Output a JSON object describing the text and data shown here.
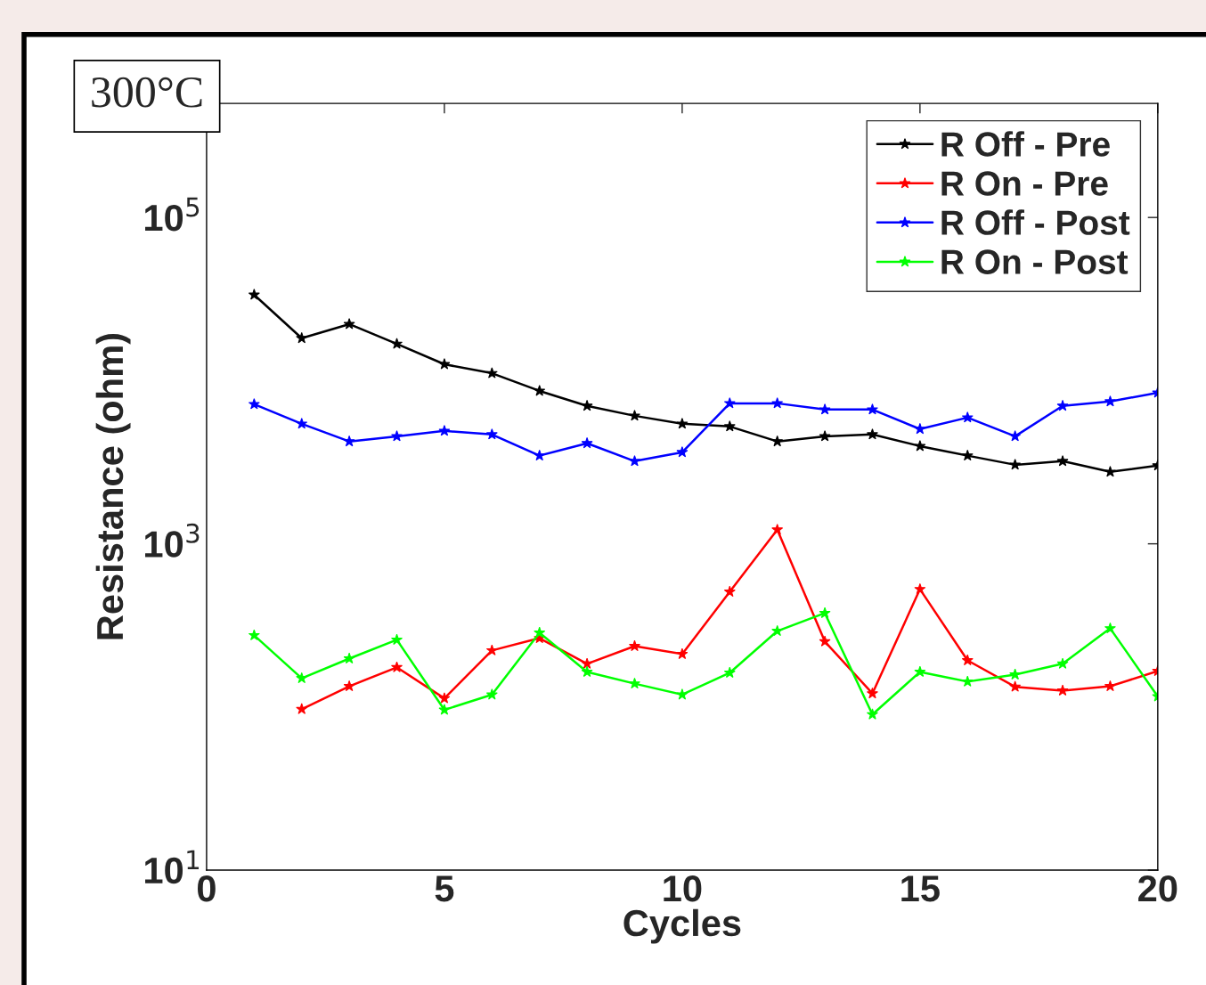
{
  "chart_data": {
    "type": "line",
    "xlabel": "Cycles",
    "ylabel": "Resistance (ohm)",
    "annotations": [
      "300°C"
    ],
    "x": [
      1,
      2,
      3,
      4,
      5,
      6,
      7,
      8,
      9,
      10,
      11,
      12,
      13,
      14,
      15,
      16,
      17,
      18,
      19,
      20
    ],
    "series": [
      {
        "name": "R Off - Pre",
        "color": "#000000",
        "values": [
          33600,
          18200,
          22200,
          16800,
          12600,
          11100,
          8650,
          7000,
          6090,
          5440,
          5240,
          4240,
          4560,
          4680,
          3970,
          3470,
          3050,
          3210,
          2760,
          3020
        ]
      },
      {
        "name": "R On - Pre",
        "color": "#ff0000",
        "values": [
          null,
          97,
          134,
          175,
          113,
          222,
          264,
          184,
          236,
          211,
          508,
          1220,
          252,
          121,
          527,
          193,
          133,
          126,
          134,
          166
        ]
      },
      {
        "name": "R Off - Post",
        "color": "#0000ff",
        "values": [
          7170,
          5440,
          4240,
          4560,
          4920,
          4680,
          3470,
          4130,
          3210,
          3640,
          7260,
          7260,
          6650,
          6650,
          5050,
          5940,
          4560,
          7000,
          7450,
          8440
        ]
      },
      {
        "name": "R On - Post",
        "color": "#00ff00",
        "values": [
          275,
          150,
          198,
          258,
          96,
          119,
          285,
          164,
          139,
          119,
          162,
          292,
          376,
          90,
          164,
          143,
          158,
          184,
          303,
          116
        ]
      }
    ],
    "xlim": [
      0,
      20
    ],
    "xticks": [
      0,
      5,
      10,
      15,
      20
    ],
    "ylim": [
      10,
      500000
    ],
    "yticks": [
      {
        "value": 10,
        "label": "10$^{1}$"
      },
      {
        "value": 1000,
        "label": "10$^{3}$"
      },
      {
        "value": 100000,
        "label": "10$^{5}$"
      }
    ],
    "log": "y",
    "grid": false,
    "legend": "top right",
    "marker": "star",
    "line_style": "solid"
  }
}
